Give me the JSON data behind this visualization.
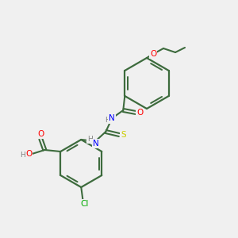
{
  "background_color": "#f0f0f0",
  "bond_color": "#3d6b3d",
  "atom_colors": {
    "O": "#ff0000",
    "N": "#0000ff",
    "S": "#cccc00",
    "Cl": "#00aa00",
    "C": "#3d6b3d",
    "H": "#808080"
  },
  "figsize": [
    3.0,
    3.0
  ],
  "dpi": 100
}
